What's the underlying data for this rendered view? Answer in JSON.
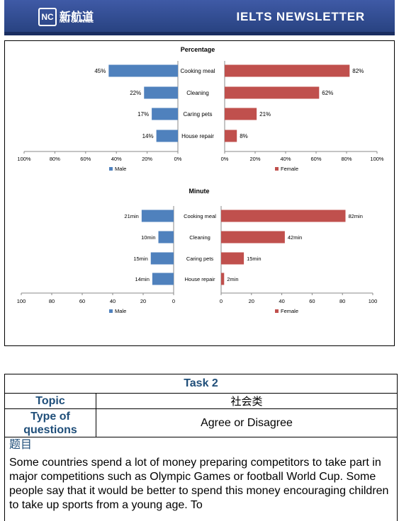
{
  "header": {
    "logo_mark": "NC",
    "logo_cn": "新航道",
    "logo_en": "NEW CHANNEL",
    "title": "IELTS  NEWSLETTER"
  },
  "chart_data": [
    {
      "type": "bar",
      "title": "Percentage",
      "categories": [
        "Cooking meal",
        "Cleaning",
        "Caring pets",
        "House repair"
      ],
      "series": [
        {
          "name": "Male",
          "values": [
            45,
            22,
            17,
            14
          ],
          "color": "#4f81bd"
        },
        {
          "name": "Female",
          "values": [
            82,
            62,
            21,
            8
          ],
          "color": "#c0504d"
        }
      ],
      "unit_suffix": "%",
      "ticks": [
        "100%",
        "80%",
        "60%",
        "40%",
        "20%",
        "0%",
        "0%",
        "20%",
        "40%",
        "60%",
        "80%",
        "100%"
      ],
      "xlim": [
        0,
        100
      ],
      "legend": "bottom"
    },
    {
      "type": "bar",
      "title": "Minute",
      "categories": [
        "Cooking meal",
        "Cleaning",
        "Caring pets",
        "House repair"
      ],
      "series": [
        {
          "name": "Male",
          "values": [
            21,
            10,
            15,
            14
          ],
          "color": "#4f81bd"
        },
        {
          "name": "Female",
          "values": [
            82,
            42,
            15,
            2
          ],
          "color": "#c0504d"
        }
      ],
      "unit_suffix": "min",
      "ticks": [
        "100",
        "80",
        "60",
        "40",
        "20",
        "0",
        "0",
        "20",
        "40",
        "60",
        "80",
        "100"
      ],
      "xlim": [
        0,
        100
      ],
      "legend": "bottom"
    }
  ],
  "task": {
    "heading": "Task 2",
    "topic_label": "Topic",
    "topic_value": "社会类",
    "type_label": "Type of questions",
    "type_value": "Agree or Disagree",
    "prompt_label": "题目",
    "prompt_text": "Some countries spend a lot of money preparing competitors to take part in major competitions such as Olympic Games or football World Cup. Some people say that it would be better to spend this money encouraging children to take up sports from a young age. To"
  }
}
